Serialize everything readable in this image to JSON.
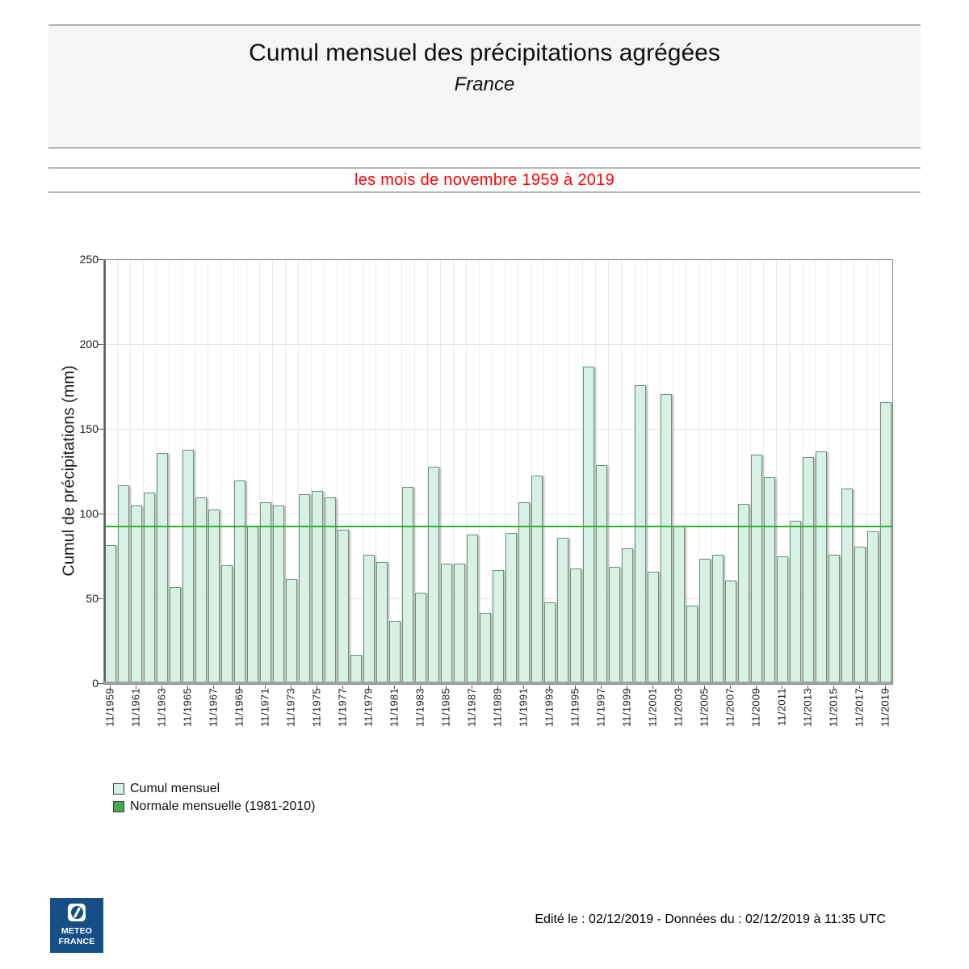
{
  "header": {
    "title": "Cumul mensuel des précipitations agrégées",
    "subtitle": "France"
  },
  "period": "les mois de novembre 1959 à 2019",
  "chart_data": {
    "type": "bar",
    "title": "Cumul mensuel des précipitations agrégées - France",
    "ylabel": "Cumul de précipitations (mm)",
    "xlabel": "",
    "ylim": [
      0,
      250
    ],
    "yticks": [
      0,
      50,
      100,
      150,
      200,
      250
    ],
    "grid": true,
    "x_labels_shown_every": 2,
    "categories": [
      "11/1959",
      "11/1960",
      "11/1961",
      "11/1962",
      "11/1963",
      "11/1964",
      "11/1965",
      "11/1966",
      "11/1967",
      "11/1968",
      "11/1969",
      "11/1970",
      "11/1971",
      "11/1972",
      "11/1973",
      "11/1974",
      "11/1975",
      "11/1976",
      "11/1977",
      "11/1978",
      "11/1979",
      "11/1980",
      "11/1981",
      "11/1982",
      "11/1983",
      "11/1984",
      "11/1985",
      "11/1986",
      "11/1987",
      "11/1988",
      "11/1989",
      "11/1990",
      "11/1991",
      "11/1992",
      "11/1993",
      "11/1994",
      "11/1995",
      "11/1996",
      "11/1997",
      "11/1998",
      "11/1999",
      "11/2000",
      "11/2001",
      "11/2002",
      "11/2003",
      "11/2004",
      "11/2005",
      "11/2006",
      "11/2007",
      "11/2008",
      "11/2009",
      "11/2010",
      "11/2011",
      "11/2012",
      "11/2013",
      "11/2014",
      "11/2015",
      "11/2016",
      "11/2017",
      "11/2018",
      "11/2019"
    ],
    "values": [
      82,
      117,
      105,
      113,
      136,
      57,
      138,
      110,
      103,
      70,
      120,
      93,
      107,
      105,
      62,
      112,
      114,
      110,
      91,
      17,
      76,
      72,
      37,
      116,
      54,
      128,
      71,
      71,
      88,
      42,
      67,
      89,
      107,
      123,
      48,
      86,
      68,
      187,
      129,
      69,
      80,
      176,
      66,
      171,
      93,
      46,
      74,
      76,
      61,
      106,
      135,
      122,
      75,
      96,
      134,
      137,
      76,
      115,
      81,
      90,
      166
    ],
    "normal_line": {
      "value": 93,
      "color": "#2db32d"
    },
    "legend": [
      {
        "label": "Cumul mensuel",
        "color": "#d7f2e4",
        "border": "#6e8f81"
      },
      {
        "label": "Normale mensuelle (1981-2010)",
        "color": "#3fae4a",
        "border": "#2a6e2a"
      }
    ],
    "legend_position": "bottom-left"
  },
  "footer": {
    "logo_line1": "METEO",
    "logo_line2": "FRANCE",
    "edited_text": "Edité le : 02/12/2019 - Données du : 02/12/2019 à 11:35 UTC"
  },
  "colors": {
    "bar_fill": "#d7f2e4",
    "bar_border": "#6e8f81",
    "normal_line": "#2db32d",
    "banner_red": "#ff0000",
    "header_bg": "#f5f5f5",
    "logo_blue": "#164f86"
  }
}
